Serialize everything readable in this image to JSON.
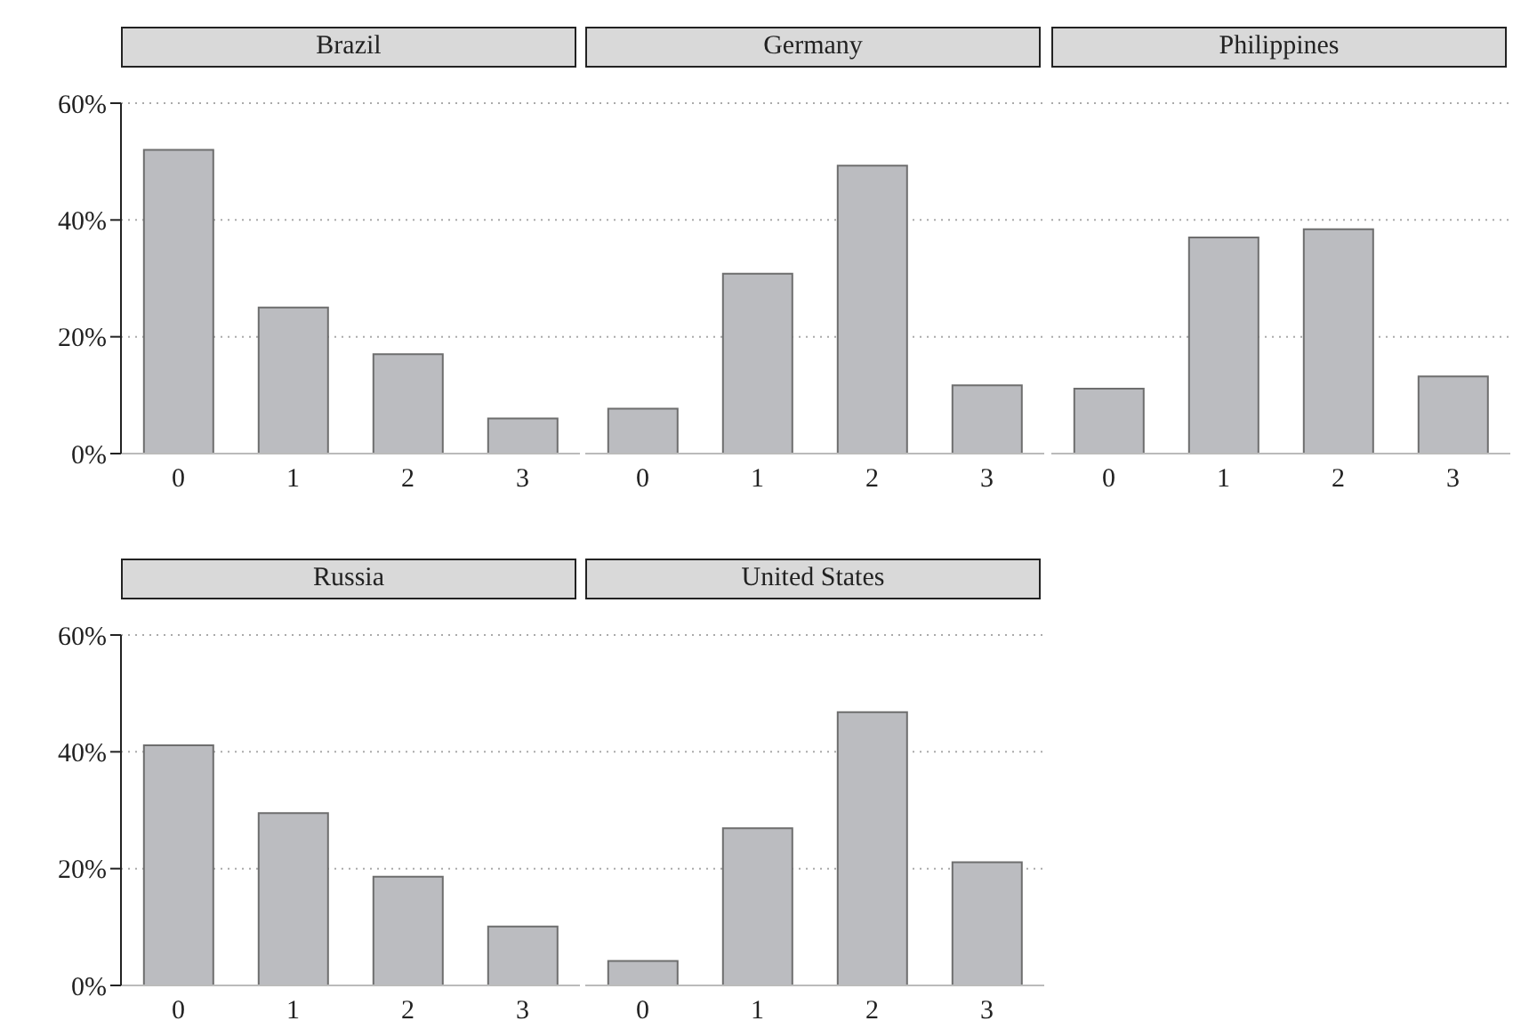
{
  "chart_data": [
    {
      "type": "bar",
      "title": "Brazil",
      "categories": [
        "0",
        "1",
        "2",
        "3"
      ],
      "values": [
        52,
        25,
        17,
        6
      ],
      "color": "#bbbcc0",
      "ylim": [
        0,
        60
      ],
      "yticks": [
        {
          "value": 0,
          "label": "0%"
        },
        {
          "value": 20,
          "label": "20%"
        },
        {
          "value": 40,
          "label": "40%"
        },
        {
          "value": 60,
          "label": "60%"
        }
      ],
      "grid": "y"
    },
    {
      "type": "bar",
      "title": "Germany",
      "categories": [
        "0",
        "1",
        "2",
        "3"
      ],
      "values": [
        7.7,
        30.8,
        49.3,
        11.7
      ],
      "color": "#bbbcc0",
      "ylim": [
        0,
        60
      ],
      "yticks": [
        0,
        20,
        40,
        60
      ],
      "grid": "y",
      "tick_labels": "x"
    },
    {
      "type": "bar",
      "title": "Philippines",
      "categories": [
        "0",
        "1",
        "2",
        "3"
      ],
      "values": [
        11.1,
        37,
        38.4,
        13.2
      ],
      "color": "#bbbcc0",
      "ylim": [
        0,
        60
      ],
      "yticks": [
        0,
        20,
        40,
        60
      ],
      "grid": "y",
      "tick_labels": "x"
    },
    {
      "type": "bar",
      "title": "Russia",
      "categories": [
        "0",
        "1",
        "2",
        "3"
      ],
      "values": [
        41.1,
        29.5,
        18.6,
        10.1
      ],
      "color": "#bbbcc0",
      "ylim": [
        0,
        60
      ],
      "yticks": [
        {
          "value": 0,
          "label": "0%"
        },
        {
          "value": 20,
          "label": "20%"
        },
        {
          "value": 40,
          "label": "40%"
        },
        {
          "value": 60,
          "label": "60%"
        }
      ],
      "grid": "y"
    },
    {
      "type": "bar",
      "title": "United States",
      "categories": [
        "0",
        "1",
        "2",
        "3"
      ],
      "values": [
        4.2,
        26.9,
        46.8,
        21.1
      ],
      "color": "#bbbcc0",
      "ylim": [
        0,
        60
      ],
      "yticks": [
        0,
        20,
        40,
        60
      ],
      "grid": "y",
      "tick_labels": "x"
    }
  ]
}
